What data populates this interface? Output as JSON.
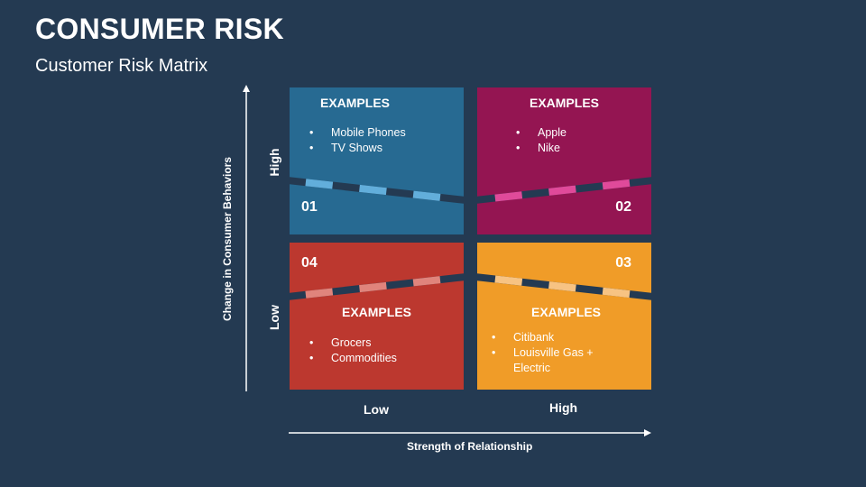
{
  "header": {
    "title": "CONSUMER RISK",
    "subtitle": "Customer Risk Matrix"
  },
  "axes": {
    "y_label": "Change in Consumer Behaviors",
    "y_high": "High",
    "y_low": "Low",
    "x_label": "Strength of Relationship",
    "x_low": "Low",
    "x_high": "High"
  },
  "quadrants": [
    {
      "number": "01",
      "heading": "EXAMPLES",
      "items": [
        "Mobile Phones",
        "TV Shows"
      ],
      "color": "#276a92",
      "dash_color": "#62aedb"
    },
    {
      "number": "02",
      "heading": "EXAMPLES",
      "items": [
        "Apple",
        "Nike"
      ],
      "color": "#941552",
      "dash_color": "#e04a9a"
    },
    {
      "number": "03",
      "heading": "EXAMPLES",
      "items": [
        "Citibank",
        "Louisville Gas +",
        "Electric"
      ],
      "color": "#f09c28",
      "dash_color": "#f7c383"
    },
    {
      "number": "04",
      "heading": "EXAMPLES",
      "items": [
        "Grocers",
        "Commodities"
      ],
      "color": "#bc382f",
      "dash_color": "#e0847c"
    }
  ]
}
